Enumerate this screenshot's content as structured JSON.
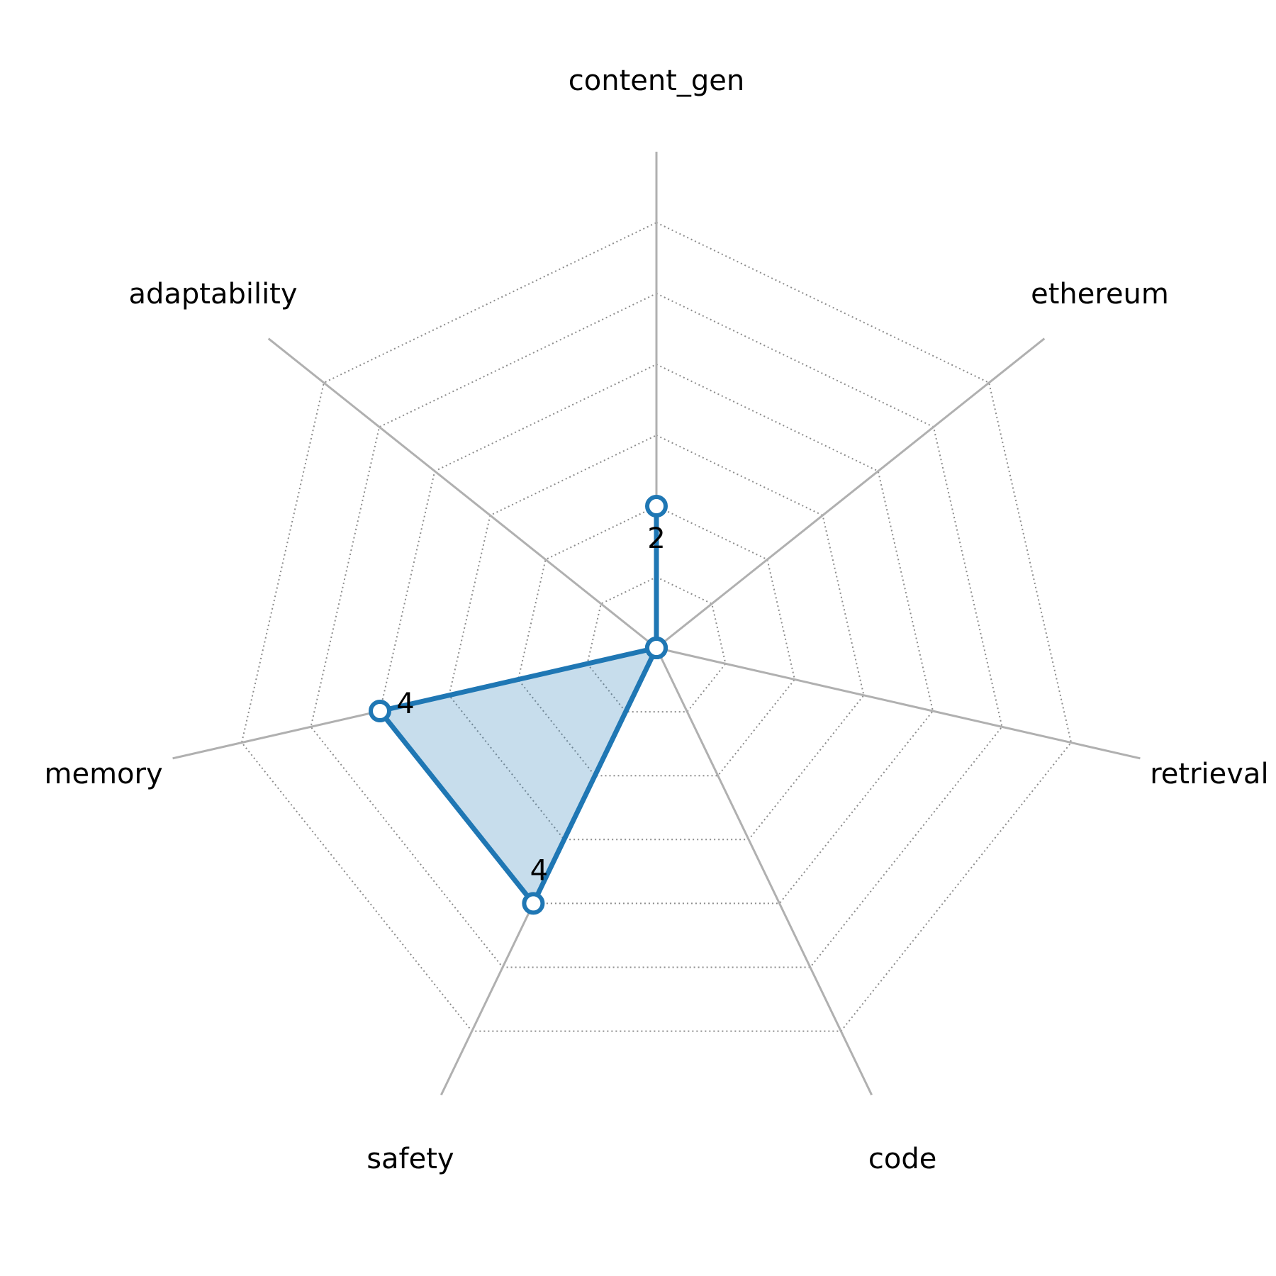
{
  "chart_data": {
    "type": "radar",
    "axes": [
      "content_gen",
      "ethereum",
      "retrieval",
      "code",
      "safety",
      "memory",
      "adaptability"
    ],
    "series": [
      {
        "values": [
          2,
          0,
          0,
          0,
          4,
          4,
          0
        ]
      }
    ],
    "range": [
      0,
      7
    ],
    "grid_rings": [
      1,
      2,
      3,
      4,
      5,
      6
    ],
    "data_labels": [
      "2",
      "",
      "",
      "",
      "4",
      "4",
      ""
    ],
    "title": "",
    "colors": {
      "series": "#1f77b4",
      "fill": "#1f77b4",
      "grid": "#8c8c8c",
      "spoke": "#b0b0b0",
      "marker_face": "#ffffff"
    },
    "grid": true,
    "legend": "none"
  }
}
